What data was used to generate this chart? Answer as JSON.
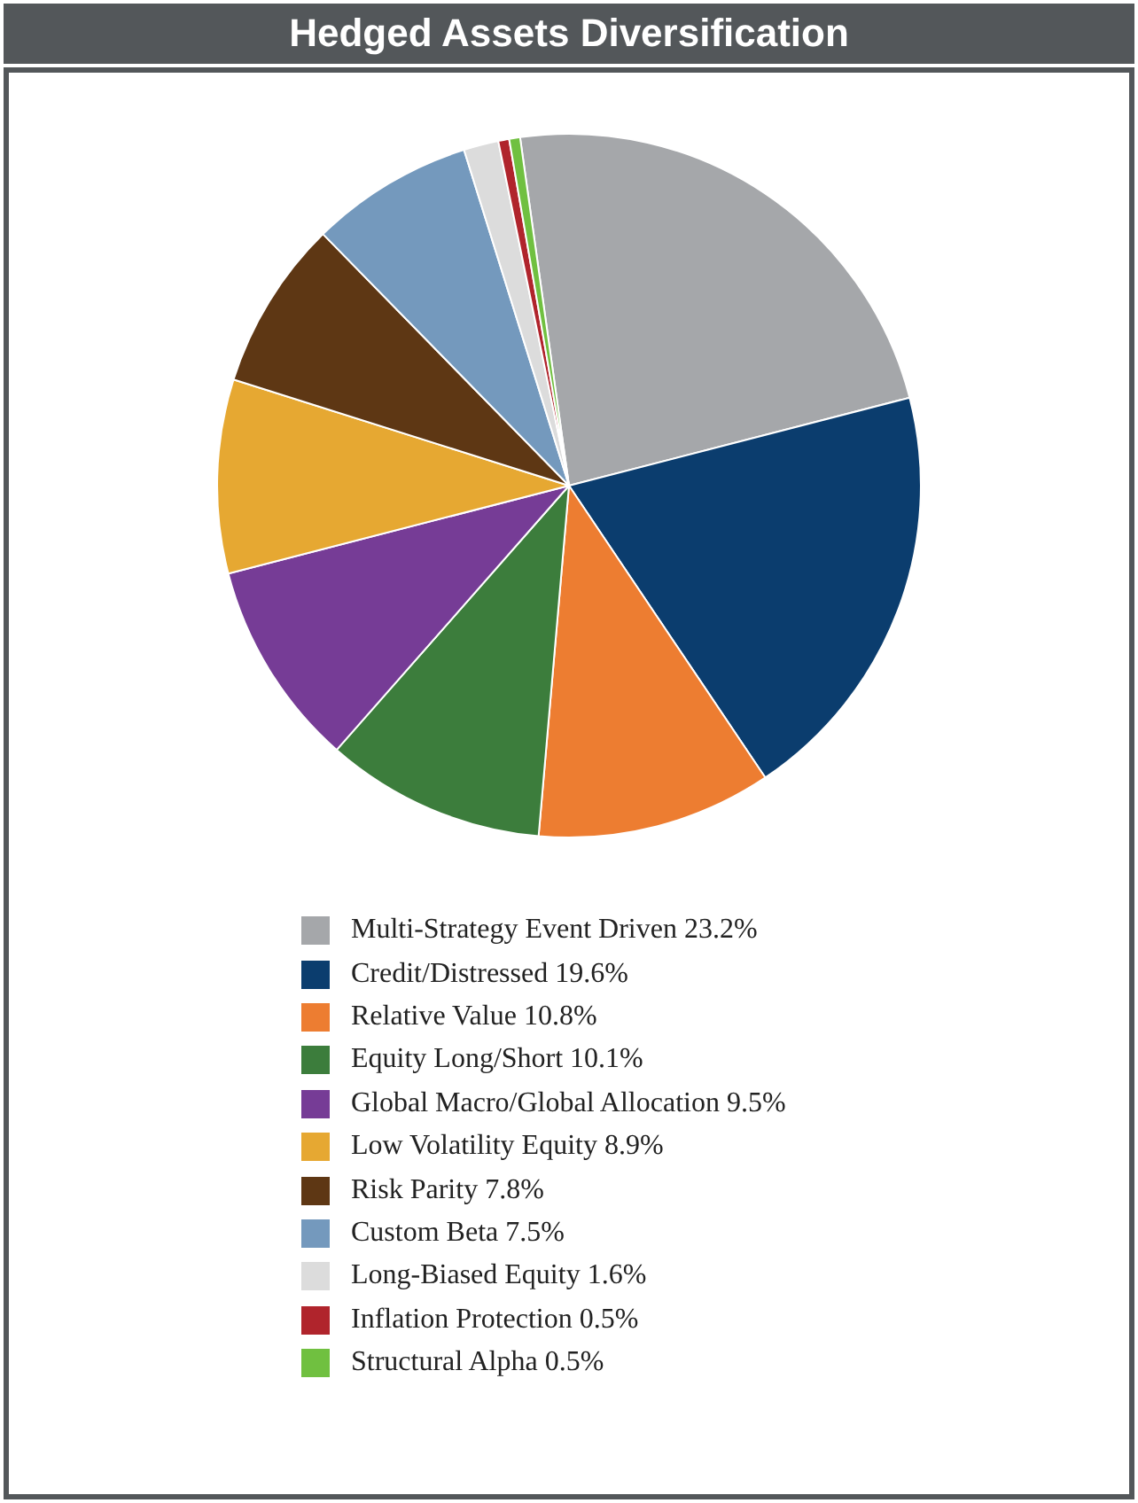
{
  "chart_data": {
    "type": "pie",
    "title": "Hedged Assets Diversification",
    "categories": [
      "Multi-Strategy Event Driven 23.2%",
      "Credit/Distressed 19.6%",
      "Relative Value 10.8%",
      "Equity Long/Short 10.1%",
      "Global Macro/Global Allocation 9.5%",
      "Low Volatility Equity 8.9%",
      "Risk Parity 7.8%",
      "Custom Beta 7.5%",
      "Long-Biased Equity 1.6%",
      "Inflation Protection 0.5%",
      "Structural Alpha 0.5%"
    ],
    "values": [
      23.2,
      19.6,
      10.8,
      10.1,
      9.5,
      8.9,
      7.8,
      7.5,
      1.6,
      0.5,
      0.5
    ],
    "colors": [
      "#a5a7aa",
      "#0b3d6e",
      "#ed7d31",
      "#3c7d3c",
      "#763c96",
      "#e6a832",
      "#5e3714",
      "#7499bd",
      "#dcdcdc",
      "#b0242c",
      "#70c040"
    ],
    "legend": "bottom"
  }
}
